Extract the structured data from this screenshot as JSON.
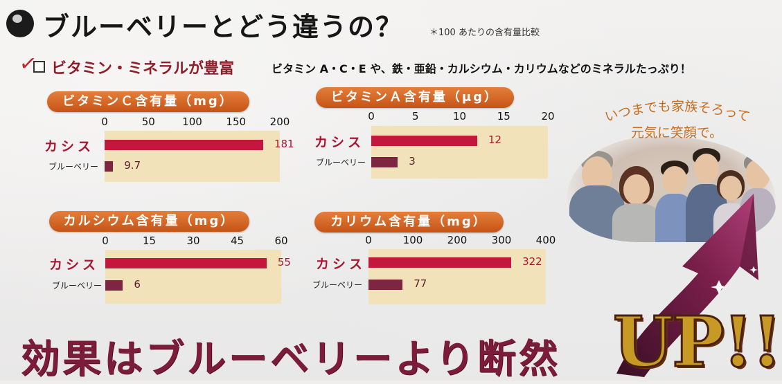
{
  "header": {
    "title": "ブルーベリーとどう違うの？",
    "note": "＊100 あたりの含有量比較"
  },
  "subheader": {
    "label": "ビタミン・ミネラルが豊富",
    "description": "ビタミン A・C・E や、鉄・亜鉛・カルシウム・カリウムなどのミネラルたっぷり！"
  },
  "colors": {
    "title_badge": "#d2601d",
    "plot_bg": "#f2e2b9",
    "cassis_bar": "#c3173d",
    "blueberry_bar": "#7e2542",
    "slogan": "#7b1d3a",
    "up": "#c79a26"
  },
  "chart_data": [
    {
      "type": "bar",
      "title": "ビタミンＣ含有量（mg）",
      "categories": [
        "カシス",
        "ブルーベリー"
      ],
      "values": [
        181,
        9.7
      ],
      "value_labels": [
        "181",
        "9.7"
      ],
      "xlim": [
        0,
        200
      ],
      "ticks": [
        "0",
        "50",
        "100",
        "150",
        "200"
      ]
    },
    {
      "type": "bar",
      "title": "ビタミンＡ含有量（μg）",
      "categories": [
        "カシス",
        "ブルーベリー"
      ],
      "values": [
        12,
        3
      ],
      "value_labels": [
        "12",
        "3"
      ],
      "xlim": [
        0,
        20
      ],
      "ticks": [
        "0",
        "5",
        "10",
        "15",
        "20"
      ]
    },
    {
      "type": "bar",
      "title": "カルシウム含有量（mg）",
      "categories": [
        "カシス",
        "ブルーベリー"
      ],
      "values": [
        55,
        6
      ],
      "value_labels": [
        "55",
        "6"
      ],
      "xlim": [
        0,
        60
      ],
      "ticks": [
        "0",
        "15",
        "30",
        "45",
        "60"
      ]
    },
    {
      "type": "bar",
      "title": "カリウム含有量（mg）",
      "categories": [
        "カシス",
        "ブルーベリー"
      ],
      "values": [
        322,
        77
      ],
      "value_labels": [
        "322",
        "77"
      ],
      "xlim": [
        0,
        400
      ],
      "ticks": [
        "0",
        "100",
        "200",
        "300",
        "400"
      ]
    }
  ],
  "family_photo": {
    "slogan_line1": "いつまでも家族そろって",
    "slogan_line2": "元気に笑顔で。"
  },
  "bottom": {
    "slogan": "効果はブルーベリーより断然",
    "up": "UP!!"
  }
}
